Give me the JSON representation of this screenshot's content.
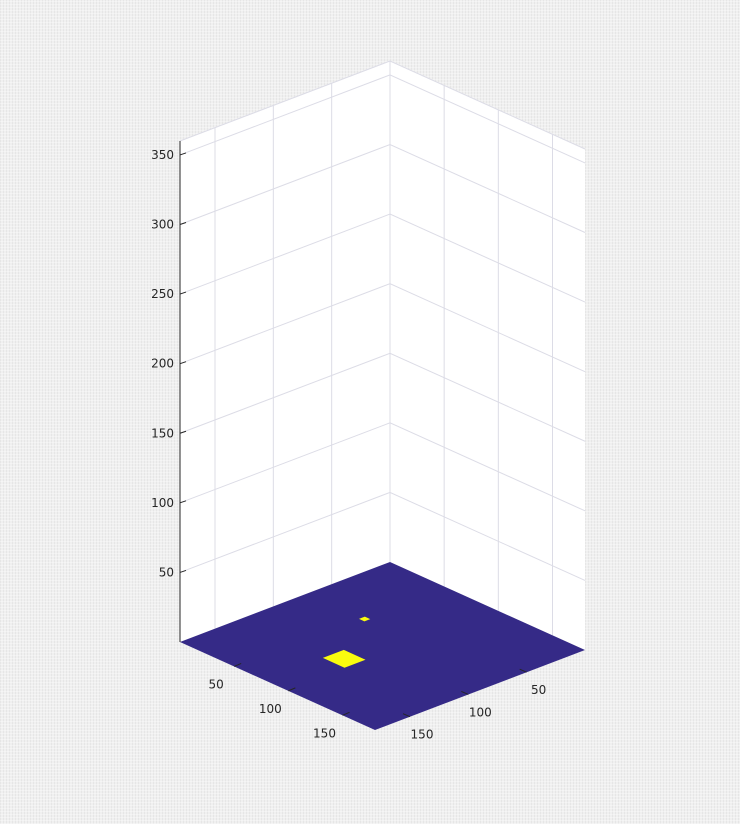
{
  "chart_data": {
    "type": "surface",
    "view": "3d",
    "grid": true,
    "colormap": "parula",
    "colors": {
      "background": "#f0f0f0",
      "pane": "#ffffff",
      "grid": "#dcdce6",
      "axis": "#262626",
      "surface_low": "#352a87",
      "surface_high": "#f9fb0e"
    },
    "xlim": [
      0,
      180
    ],
    "ylim": [
      0,
      180
    ],
    "zlim": [
      0,
      360
    ],
    "x_ticks": [
      50,
      100,
      150
    ],
    "y_ticks": [
      50,
      100,
      150
    ],
    "z_ticks": [
      50,
      100,
      150,
      200,
      250,
      300,
      350
    ],
    "x_tick_labels": [
      "50",
      "100",
      "150"
    ],
    "y_tick_labels": [
      "50",
      "100",
      "150"
    ],
    "z_tick_labels": [
      "50",
      "100",
      "150",
      "200",
      "250",
      "300",
      "350"
    ],
    "floor_value": 0,
    "highlighted_regions": [
      {
        "x_range": [
          78,
          98
        ],
        "y_range": [
          112,
          130
        ],
        "level": "high"
      },
      {
        "x_range": [
          50,
          55
        ],
        "y_range": [
          68,
          73
        ],
        "level": "high"
      }
    ]
  }
}
